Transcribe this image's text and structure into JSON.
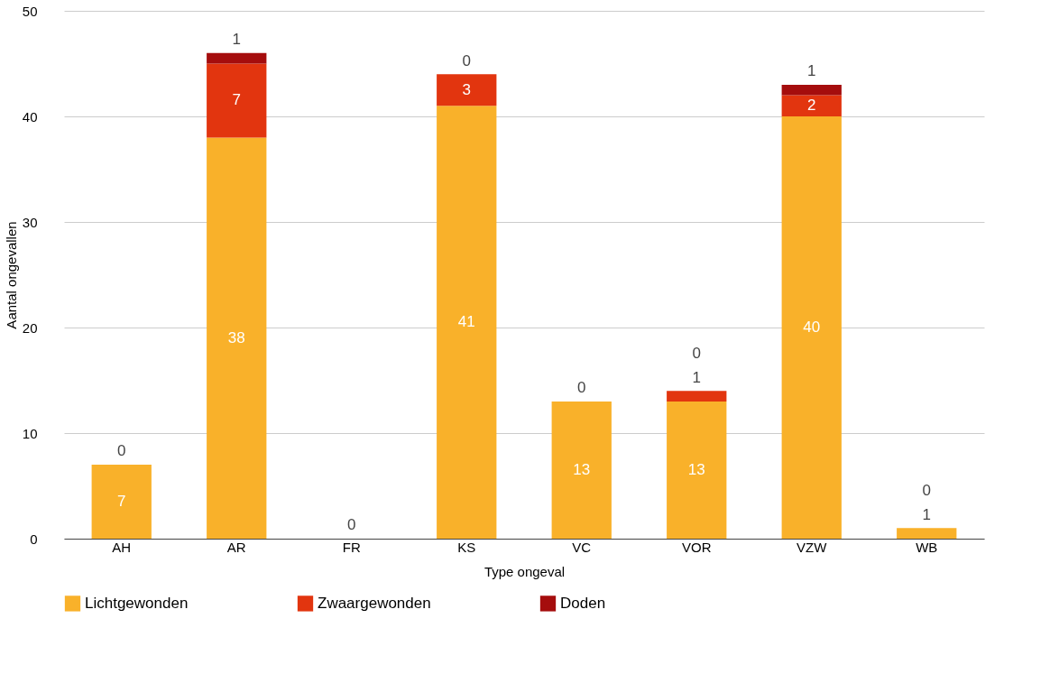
{
  "chart_data": {
    "type": "bar",
    "stacked": true,
    "xlabel": "Type ongeval",
    "ylabel": "Aantal ongevallen",
    "categories": [
      "AH",
      "AR",
      "FR",
      "KS",
      "VC",
      "VOR",
      "VZW",
      "WB"
    ],
    "series": [
      {
        "name": "Lichtgewonden",
        "color": "#f9b12a",
        "values": [
          7,
          38,
          0,
          41,
          13,
          13,
          40,
          1
        ],
        "value_labels": [
          "7",
          "38",
          "0",
          "41",
          "13",
          "13",
          "40",
          "1"
        ]
      },
      {
        "name": "Zwaargewonden",
        "color": "#e2350f",
        "values": [
          0,
          7,
          0,
          3,
          0,
          1,
          2,
          0
        ],
        "value_labels": [
          "0",
          "7",
          null,
          "3",
          "0",
          "1",
          "2",
          "0"
        ]
      },
      {
        "name": "Doden",
        "color": "#a50d0d",
        "values": [
          0,
          1,
          0,
          0,
          0,
          0,
          1,
          0
        ],
        "value_labels": [
          null,
          "1",
          null,
          "0",
          null,
          "0",
          "1",
          null
        ]
      }
    ],
    "ylim": [
      0,
      50
    ],
    "yticks": [
      0,
      10,
      20,
      30,
      40,
      50
    ],
    "grid": "y",
    "legend": "bottom"
  }
}
